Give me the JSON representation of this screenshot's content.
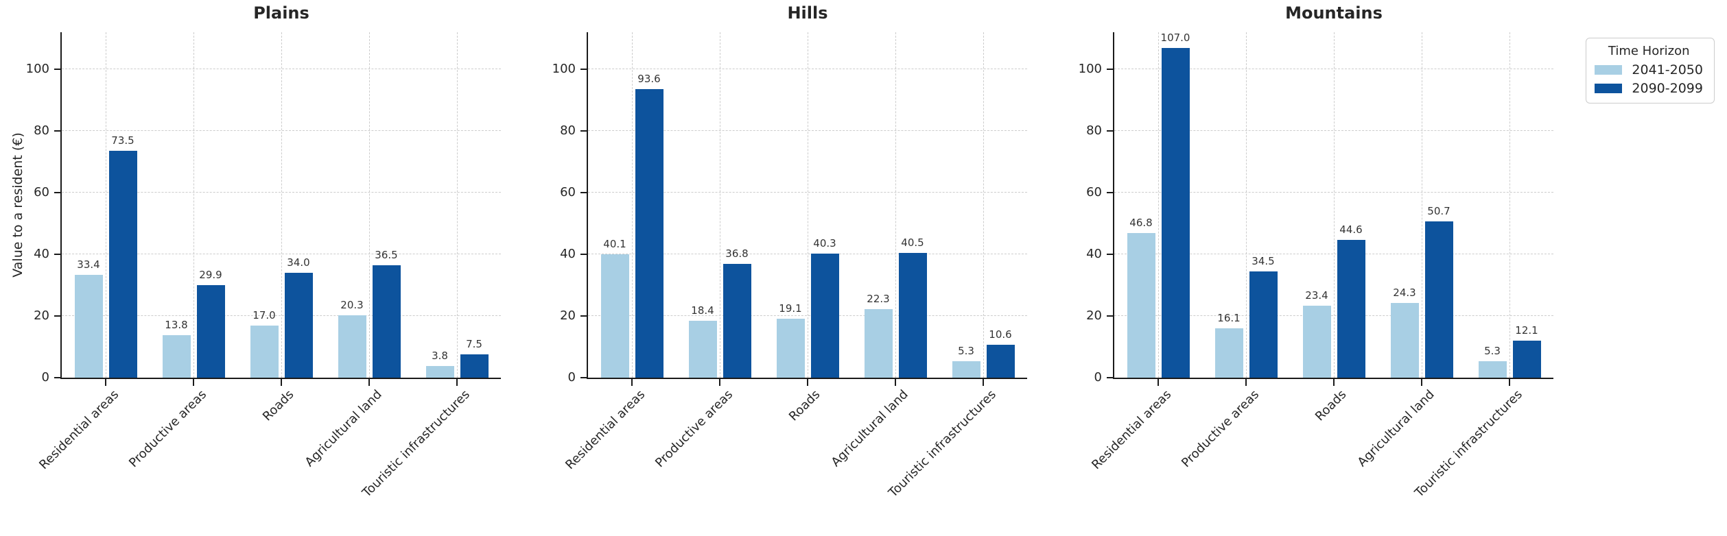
{
  "figure": {
    "ylabel": "Value to a resident (€)",
    "legend": {
      "title": "Time Horizon",
      "entries": [
        {
          "label": "2041-2050",
          "color": "#a8cfe4"
        },
        {
          "label": "2090-2099",
          "color": "#0d539d"
        }
      ],
      "position": "upper right"
    },
    "text_color": "#262626",
    "grid_color": "#cccccc",
    "spine_color": "#1a1a1a"
  },
  "chart_data": [
    {
      "type": "bar",
      "title": "Plains",
      "categories": [
        "Residential areas",
        "Productive areas",
        "Roads",
        "Agricultural land",
        "Touristic infrastructures"
      ],
      "series": [
        {
          "name": "2041-2050",
          "values": [
            33.4,
            13.8,
            17.0,
            20.3,
            3.8
          ]
        },
        {
          "name": "2090-2099",
          "values": [
            73.5,
            29.9,
            34.0,
            36.5,
            7.5
          ]
        }
      ],
      "ylabel": "Value to a resident (€)",
      "ylim": [
        0,
        112
      ],
      "yticks": [
        0,
        20,
        40,
        60,
        80,
        100
      ],
      "grid": true,
      "bar_value_labels": true
    },
    {
      "type": "bar",
      "title": "Hills",
      "categories": [
        "Residential areas",
        "Productive areas",
        "Roads",
        "Agricultural land",
        "Touristic infrastructures"
      ],
      "series": [
        {
          "name": "2041-2050",
          "values": [
            40.1,
            18.4,
            19.1,
            22.3,
            5.3
          ]
        },
        {
          "name": "2090-2099",
          "values": [
            93.6,
            36.8,
            40.3,
            40.5,
            10.6
          ]
        }
      ],
      "ylabel": "Value to a resident (€)",
      "ylim": [
        0,
        112
      ],
      "yticks": [
        0,
        20,
        40,
        60,
        80,
        100
      ],
      "grid": true,
      "bar_value_labels": true
    },
    {
      "type": "bar",
      "title": "Mountains",
      "categories": [
        "Residential areas",
        "Productive areas",
        "Roads",
        "Agricultural land",
        "Touristic infrastructures"
      ],
      "series": [
        {
          "name": "2041-2050",
          "values": [
            46.8,
            16.1,
            23.4,
            24.3,
            5.3
          ]
        },
        {
          "name": "2090-2099",
          "values": [
            107.0,
            34.5,
            44.6,
            50.7,
            12.1
          ]
        }
      ],
      "ylabel": "Value to a resident (€)",
      "ylim": [
        0,
        112
      ],
      "yticks": [
        0,
        20,
        40,
        60,
        80,
        100
      ],
      "grid": true,
      "bar_value_labels": true
    }
  ]
}
